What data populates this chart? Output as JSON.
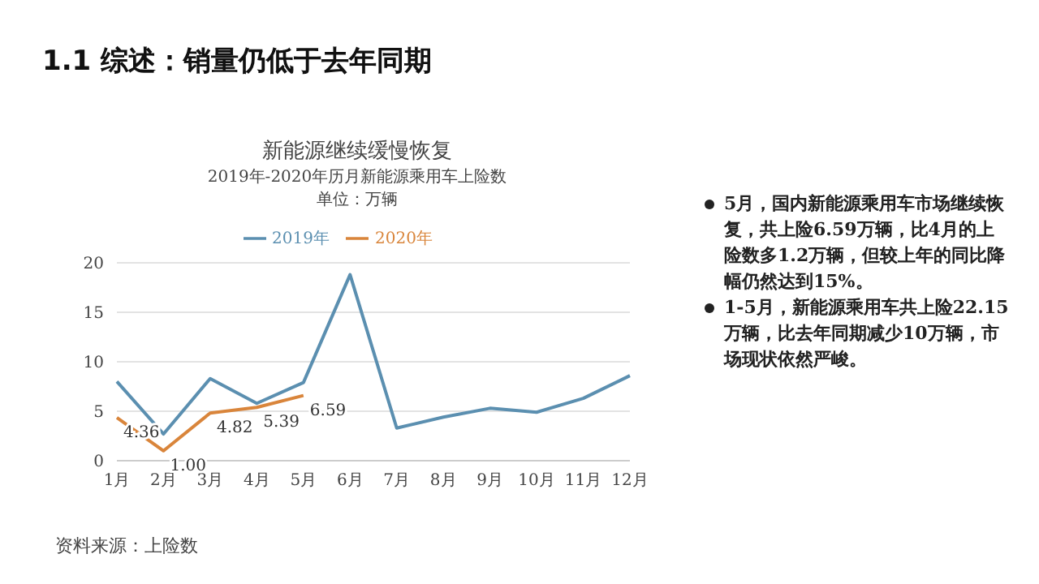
{
  "chart_data": {
    "type": "line",
    "title": "新能源继续缓慢恢复",
    "subtitle": "2019年-2020年历月新能源乘用车上险数",
    "annotations": [
      "1.1 综述：销量仍低于去年同期",
      "单位：万辆",
      "5月，国内新能源乘用车市场继续恢复，共上险6.59万辆，比4月的上险数多1.2万辆，但较上年的同比降幅仍然达到15%。",
      "1-5月，新能源乘用车共上险22.15万辆，比去年同期减少10万辆，市场现状依然严峻。",
      "资料来源：上险数"
    ],
    "categories": [
      "1月",
      "2月",
      "3月",
      "4月",
      "5月",
      "6月",
      "7月",
      "8月",
      "9月",
      "10月",
      "11月",
      "12月"
    ],
    "series": [
      {
        "name": "2019年",
        "color": "#5b8fb0",
        "values": [
          8.0,
          2.7,
          8.3,
          5.8,
          7.9,
          18.8,
          3.3,
          4.4,
          5.3,
          4.9,
          6.3,
          8.6
        ]
      },
      {
        "name": "2020年",
        "color": "#d9853b",
        "values": [
          4.36,
          1.0,
          4.82,
          5.39,
          6.59,
          null,
          null,
          null,
          null,
          null,
          null,
          null
        ],
        "value_labels": [
          "4.36",
          "1.00",
          "4.82",
          "5.39",
          "6.59",
          null,
          null,
          null,
          null,
          null,
          null,
          null
        ]
      }
    ],
    "ylim": [
      0,
      20
    ],
    "yticks": [
      0,
      5,
      10,
      15,
      20
    ],
    "grid": "y",
    "legend": "top",
    "marker": "none",
    "line_style": "solid"
  }
}
